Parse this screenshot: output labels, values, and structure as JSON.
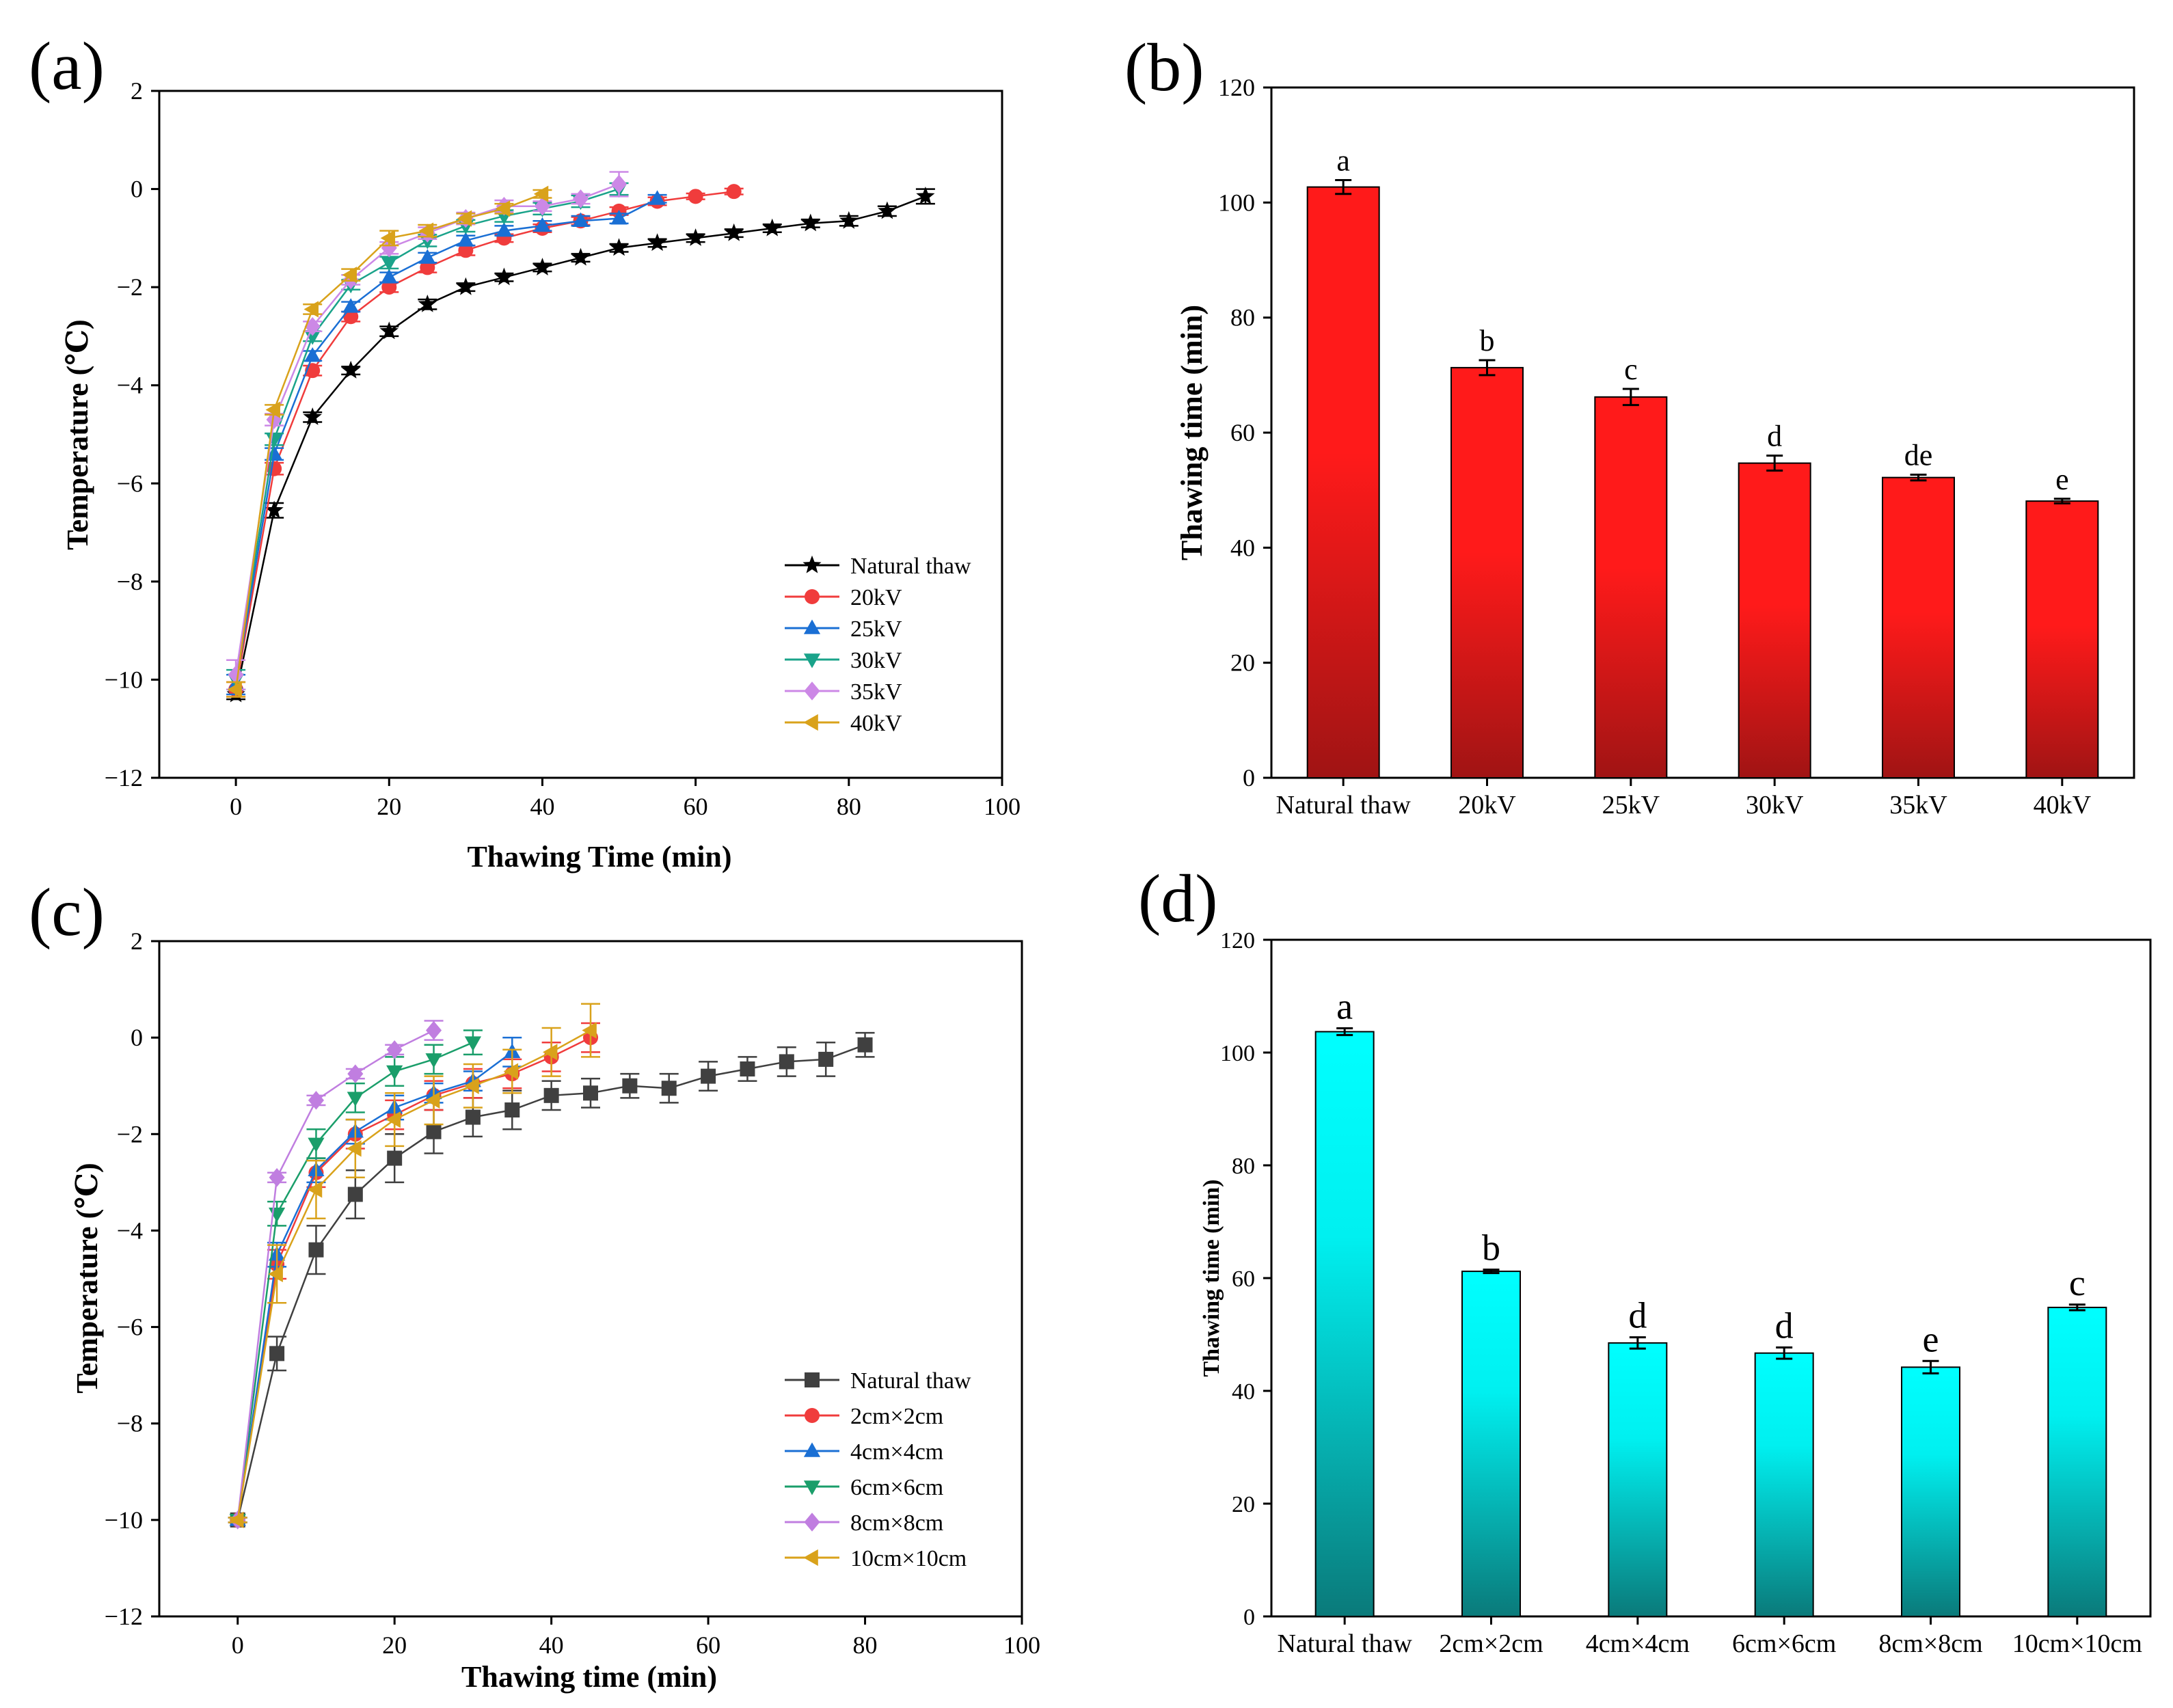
{
  "chart_data": [
    {
      "id": "a",
      "panel_label": "(a)",
      "type": "line",
      "xlabel": "Thawing Time (min)",
      "ylabel": "Temperature (℃)",
      "xlim": [
        -10,
        100
      ],
      "ylim": [
        -12,
        2
      ],
      "x_ticks": [
        "0",
        "20",
        "40",
        "60",
        "80",
        "100"
      ],
      "y_ticks": [
        "2",
        "0",
        "−2",
        "−4",
        "−6",
        "−8",
        "−10",
        "−12"
      ],
      "legend_position": "bottom-right",
      "series": [
        {
          "name": "Natural thaw",
          "color": "#000000",
          "marker": "star",
          "x": [
            0,
            5,
            10,
            15,
            20,
            25,
            30,
            35,
            40,
            45,
            50,
            55,
            60,
            65,
            70,
            75,
            80,
            85,
            90
          ],
          "y": [
            -10.3,
            -6.55,
            -4.65,
            -3.7,
            -2.9,
            -2.35,
            -2.0,
            -1.8,
            -1.6,
            -1.4,
            -1.2,
            -1.1,
            -1.0,
            -0.9,
            -0.8,
            -0.7,
            -0.65,
            -0.45,
            -0.15
          ],
          "err": [
            0.1,
            0.15,
            0.1,
            0.08,
            0.1,
            0.1,
            0.08,
            0.08,
            0.08,
            0.08,
            0.08,
            0.08,
            0.08,
            0.08,
            0.08,
            0.08,
            0.1,
            0.1,
            0.15
          ]
        },
        {
          "name": "20kV",
          "color": "#f03c3c",
          "marker": "circle",
          "x": [
            0,
            5,
            10,
            15,
            20,
            25,
            30,
            35,
            40,
            45,
            50,
            55,
            60,
            65
          ],
          "y": [
            -10.2,
            -5.7,
            -3.7,
            -2.6,
            -2.0,
            -1.6,
            -1.25,
            -1.0,
            -0.8,
            -0.65,
            -0.45,
            -0.25,
            -0.15,
            -0.05
          ],
          "err": [
            0.15,
            0.12,
            0.1,
            0.1,
            0.1,
            0.1,
            0.1,
            0.08,
            0.08,
            0.08,
            0.08,
            0.08,
            0.06,
            0.06
          ]
        },
        {
          "name": "25kV",
          "color": "#1a6fd4",
          "marker": "triangle-up",
          "x": [
            0,
            5,
            10,
            15,
            20,
            25,
            30,
            35,
            40,
            45,
            50,
            55
          ],
          "y": [
            -10.1,
            -5.4,
            -3.4,
            -2.4,
            -1.8,
            -1.4,
            -1.05,
            -0.85,
            -0.75,
            -0.65,
            -0.6,
            -0.2
          ],
          "err": [
            0.2,
            0.12,
            0.1,
            0.1,
            0.1,
            0.1,
            0.1,
            0.1,
            0.1,
            0.1,
            0.1,
            0.08
          ]
        },
        {
          "name": "30kV",
          "color": "#1aa38a",
          "marker": "triangle-down",
          "x": [
            0,
            5,
            10,
            15,
            20,
            25,
            30,
            35,
            40,
            45,
            50
          ],
          "y": [
            -10.0,
            -5.1,
            -3.0,
            -1.95,
            -1.5,
            -1.05,
            -0.75,
            -0.55,
            -0.4,
            -0.25,
            0.0
          ],
          "err": [
            0.2,
            0.12,
            0.1,
            0.1,
            0.12,
            0.12,
            0.12,
            0.12,
            0.12,
            0.12,
            0.12
          ]
        },
        {
          "name": "35kV",
          "color": "#cc88e6",
          "marker": "diamond",
          "x": [
            0,
            5,
            10,
            15,
            20,
            25,
            30,
            35,
            40,
            45,
            50
          ],
          "y": [
            -9.9,
            -4.7,
            -2.8,
            -1.85,
            -1.2,
            -0.9,
            -0.6,
            -0.35,
            -0.35,
            -0.2,
            0.1
          ],
          "err": [
            0.3,
            0.12,
            0.1,
            0.1,
            0.12,
            0.12,
            0.12,
            0.12,
            0.1,
            0.1,
            0.25
          ]
        },
        {
          "name": "40kV",
          "color": "#d9a21b",
          "marker": "triangle-left",
          "x": [
            0,
            5,
            10,
            15,
            20,
            25,
            30,
            35,
            40
          ],
          "y": [
            -10.2,
            -4.5,
            -2.45,
            -1.75,
            -1.0,
            -0.85,
            -0.6,
            -0.4,
            -0.1
          ],
          "err": [
            0.15,
            0.1,
            0.1,
            0.12,
            0.15,
            0.12,
            0.1,
            0.1,
            0.08
          ]
        }
      ]
    },
    {
      "id": "b",
      "panel_label": "(b)",
      "type": "bar",
      "xlabel": "",
      "ylabel": "Thawing time (min)",
      "ylim": [
        0,
        120
      ],
      "y_ticks": [
        "0",
        "20",
        "40",
        "60",
        "80",
        "100",
        "120"
      ],
      "categories": [
        "Natural thaw",
        "20kV",
        "25kV",
        "30kV",
        "35kV",
        "40kV"
      ],
      "values": [
        102.7,
        71.3,
        66.2,
        54.7,
        52.2,
        48.1
      ],
      "errors": [
        1.2,
        1.3,
        1.4,
        1.3,
        0.5,
        0.4
      ],
      "significance": [
        "a",
        "b",
        "c",
        "d",
        "de",
        "e"
      ],
      "color_top": "#ff1a1a",
      "color_bottom": "#a01414"
    },
    {
      "id": "c",
      "panel_label": "(c)",
      "type": "line",
      "xlabel": "Thawing time (min)",
      "ylabel": "Temperature (℃)",
      "xlim": [
        -10,
        100
      ],
      "ylim": [
        -12,
        2
      ],
      "x_ticks": [
        "0",
        "20",
        "40",
        "60",
        "80",
        "100"
      ],
      "y_ticks": [
        "2",
        "0",
        "−2",
        "−4",
        "−6",
        "−8",
        "−10",
        "−12"
      ],
      "legend_position": "bottom-right",
      "series": [
        {
          "name": "Natural thaw",
          "color": "#404040",
          "marker": "square",
          "x": [
            0,
            5,
            10,
            15,
            20,
            25,
            30,
            35,
            40,
            45,
            50,
            55,
            60,
            65,
            70,
            75,
            80
          ],
          "y": [
            -10.0,
            -6.55,
            -4.4,
            -3.25,
            -2.5,
            -1.95,
            -1.65,
            -1.5,
            -1.2,
            -1.15,
            -1.0,
            -1.05,
            -0.8,
            -0.65,
            -0.5,
            -0.45,
            -0.15
          ],
          "err": [
            0.05,
            0.35,
            0.5,
            0.5,
            0.5,
            0.45,
            0.4,
            0.4,
            0.3,
            0.3,
            0.25,
            0.3,
            0.3,
            0.25,
            0.3,
            0.35,
            0.25
          ]
        },
        {
          "name": "2cm×2cm",
          "color": "#f03c3c",
          "marker": "circle",
          "x": [
            0,
            5,
            10,
            15,
            20,
            25,
            30,
            35,
            40,
            45
          ],
          "y": [
            -10.0,
            -4.7,
            -2.8,
            -2.0,
            -1.6,
            -1.2,
            -0.95,
            -0.75,
            -0.4,
            0.0
          ],
          "err": [
            0.05,
            0.3,
            0.3,
            0.3,
            0.3,
            0.3,
            0.3,
            0.3,
            0.3,
            0.3
          ]
        },
        {
          "name": "4cm×4cm",
          "color": "#1a6fd4",
          "marker": "triangle-up",
          "x": [
            0,
            5,
            10,
            15,
            20,
            25,
            30,
            35
          ],
          "y": [
            -10.0,
            -4.5,
            -2.75,
            -1.95,
            -1.45,
            -1.15,
            -0.9,
            -0.3
          ],
          "err": [
            0.05,
            0.25,
            0.25,
            0.25,
            0.25,
            0.2,
            0.2,
            0.3
          ]
        },
        {
          "name": "6cm×6cm",
          "color": "#1a9e6a",
          "marker": "triangle-down",
          "x": [
            0,
            5,
            10,
            15,
            20,
            25,
            30
          ],
          "y": [
            -10.0,
            -3.65,
            -2.2,
            -1.25,
            -0.7,
            -0.45,
            -0.1
          ],
          "err": [
            0.05,
            0.25,
            0.3,
            0.3,
            0.3,
            0.3,
            0.25
          ]
        },
        {
          "name": "8cm×8cm",
          "color": "#c07ee0",
          "marker": "diamond",
          "x": [
            0,
            5,
            10,
            15,
            20,
            25
          ],
          "y": [
            -10.0,
            -2.9,
            -1.3,
            -0.75,
            -0.25,
            0.15
          ],
          "err": [
            0.05,
            0.1,
            0.1,
            0.1,
            0.1,
            0.2
          ]
        },
        {
          "name": "10cm×10cm",
          "color": "#d9a21b",
          "marker": "triangle-left",
          "x": [
            0,
            5,
            10,
            15,
            20,
            25,
            30,
            35,
            40,
            45
          ],
          "y": [
            -10.0,
            -4.9,
            -3.15,
            -2.3,
            -1.7,
            -1.3,
            -1.0,
            -0.7,
            -0.3,
            0.15
          ],
          "err": [
            0.05,
            0.6,
            0.6,
            0.6,
            0.55,
            0.5,
            0.45,
            0.45,
            0.5,
            0.55
          ]
        }
      ]
    },
    {
      "id": "d",
      "panel_label": "(d)",
      "type": "bar",
      "xlabel": "",
      "ylabel": "Thawing time (min)",
      "ylim": [
        0,
        120
      ],
      "y_ticks": [
        "0",
        "20",
        "40",
        "60",
        "80",
        "100",
        "120"
      ],
      "categories": [
        "Natural thaw",
        "2cm×2cm",
        "4cm×4cm",
        "6cm×6cm",
        "8cm×8cm",
        "10cm×10cm"
      ],
      "values": [
        103.7,
        61.2,
        48.5,
        46.7,
        44.2,
        54.8
      ],
      "errors": [
        0.6,
        0.3,
        1.0,
        1.0,
        1.1,
        0.5
      ],
      "significance": [
        "a",
        "b",
        "d",
        "d",
        "e",
        "c"
      ],
      "color_top": "#00ffff",
      "color_bottom": "#0a7a7a"
    }
  ]
}
